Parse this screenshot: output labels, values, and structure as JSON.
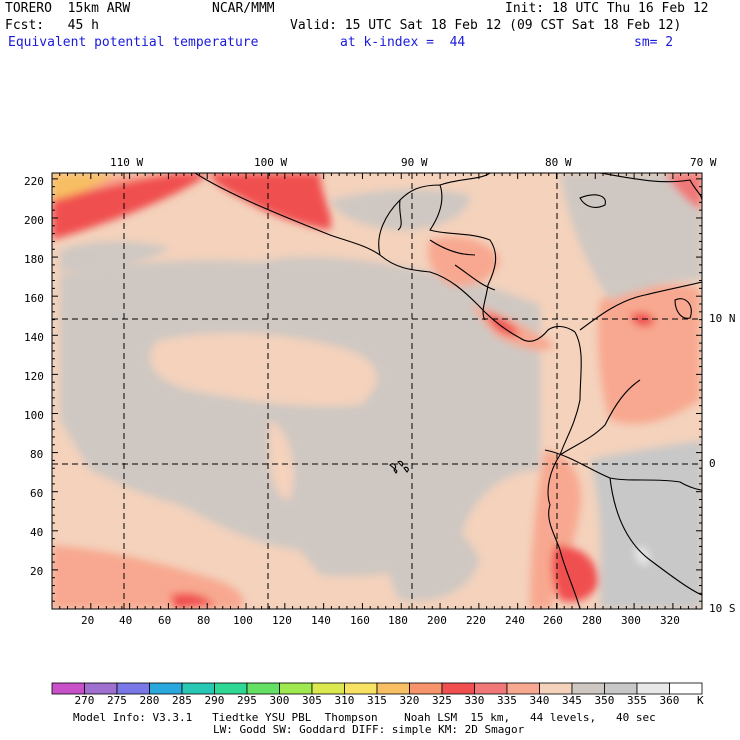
{
  "header": {
    "model": "TORERO  15km ARW",
    "org": "NCAR/MMM",
    "init": "Init: 18 UTC Thu 16 Feb 12",
    "fcst": "Fcst:   45 h",
    "valid": "Valid: 15 UTC Sat 18 Feb 12 (09 CST Sat 18 Feb 12)",
    "field": "Equivalent potential temperature",
    "level": "at k-index =  44",
    "smooth": "sm= 2"
  },
  "map": {
    "lon_labels": [
      "110 W",
      "100 W",
      "90 W",
      "80 W",
      "70 W"
    ],
    "lat_labels": [
      "10 N",
      "0",
      "10 S"
    ],
    "x_ticks": [
      "20",
      "40",
      "60",
      "80",
      "100",
      "120",
      "140",
      "160",
      "180",
      "200",
      "220",
      "240",
      "260",
      "280",
      "300",
      "320"
    ],
    "y_ticks": [
      "20",
      "40",
      "60",
      "80",
      "100",
      "120",
      "140",
      "160",
      "180",
      "200",
      "220"
    ],
    "grid_range": {
      "x": [
        0,
        335
      ],
      "y": [
        0,
        223
      ]
    }
  },
  "colorbar": {
    "labels": [
      "270",
      "275",
      "280",
      "285",
      "290",
      "295",
      "300",
      "305",
      "310",
      "315",
      "320",
      "325",
      "330",
      "335",
      "340",
      "345",
      "350",
      "355",
      "360"
    ],
    "unit": "K",
    "colors": [
      "#c850c8",
      "#a070d0",
      "#7a78e8",
      "#28a8dc",
      "#28c8b4",
      "#30d896",
      "#64e064",
      "#a0e850",
      "#dce850",
      "#f8e264",
      "#f8be64",
      "#f8946c",
      "#f05050",
      "#f07878",
      "#f8a890",
      "#f4d2bc",
      "#cfc8c2",
      "#c8c8c8",
      "#e8e8e8",
      "#ffffff"
    ]
  },
  "footer": {
    "line1": "Model Info: V3.3.1   Tiedtke YSU PBL  Thompson    Noah LSM  15 km,   44 levels,   40 sec",
    "line2": "LW: Godd SW: Goddard DIFF: simple KM: 2D Smagor"
  }
}
